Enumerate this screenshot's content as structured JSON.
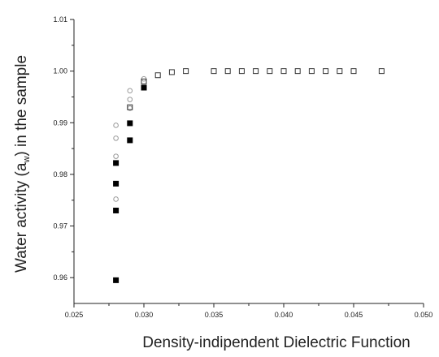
{
  "chart_data": {
    "type": "scatter",
    "title": "",
    "xlabel": "Density-indipendent Dielectric Function",
    "ylabel_main": "Water activity (a",
    "ylabel_sub": "w",
    "ylabel_tail": ") in the sample",
    "xlim": [
      0.025,
      0.05
    ],
    "ylim": [
      0.955,
      1.01
    ],
    "x_ticks": [
      "0.025",
      "0.030",
      "0.035",
      "0.040",
      "0.045",
      "0.050"
    ],
    "y_ticks": [
      "0.96",
      "0.97",
      "0.98",
      "0.99",
      "1.00",
      "1.01"
    ],
    "grid": false,
    "series": [
      {
        "marker": "filled-square",
        "color": "#000000",
        "points": [
          [
            0.028,
            0.9595
          ],
          [
            0.028,
            0.973
          ],
          [
            0.028,
            0.9782
          ],
          [
            0.028,
            0.9822
          ],
          [
            0.029,
            0.9866
          ],
          [
            0.029,
            0.9899
          ],
          [
            0.03,
            0.9968
          ]
        ]
      },
      {
        "marker": "open-circle",
        "color": "#999999",
        "points": [
          [
            0.028,
            0.9752
          ],
          [
            0.028,
            0.9835
          ],
          [
            0.028,
            0.987
          ],
          [
            0.028,
            0.9895
          ],
          [
            0.029,
            0.9928
          ],
          [
            0.029,
            0.9945
          ],
          [
            0.029,
            0.9962
          ],
          [
            0.03,
            0.9985
          ]
        ]
      },
      {
        "marker": "open-square",
        "color": "#333333",
        "points": [
          [
            0.029,
            0.993
          ],
          [
            0.03,
            0.998
          ],
          [
            0.031,
            0.9992
          ],
          [
            0.032,
            0.9998
          ],
          [
            0.033,
            1.0
          ],
          [
            0.035,
            1.0
          ],
          [
            0.036,
            1.0
          ],
          [
            0.037,
            1.0
          ],
          [
            0.038,
            1.0
          ],
          [
            0.039,
            1.0
          ],
          [
            0.04,
            1.0
          ],
          [
            0.041,
            1.0
          ],
          [
            0.042,
            1.0
          ],
          [
            0.043,
            1.0
          ],
          [
            0.044,
            1.0
          ],
          [
            0.045,
            1.0
          ],
          [
            0.047,
            1.0
          ]
        ]
      }
    ]
  }
}
